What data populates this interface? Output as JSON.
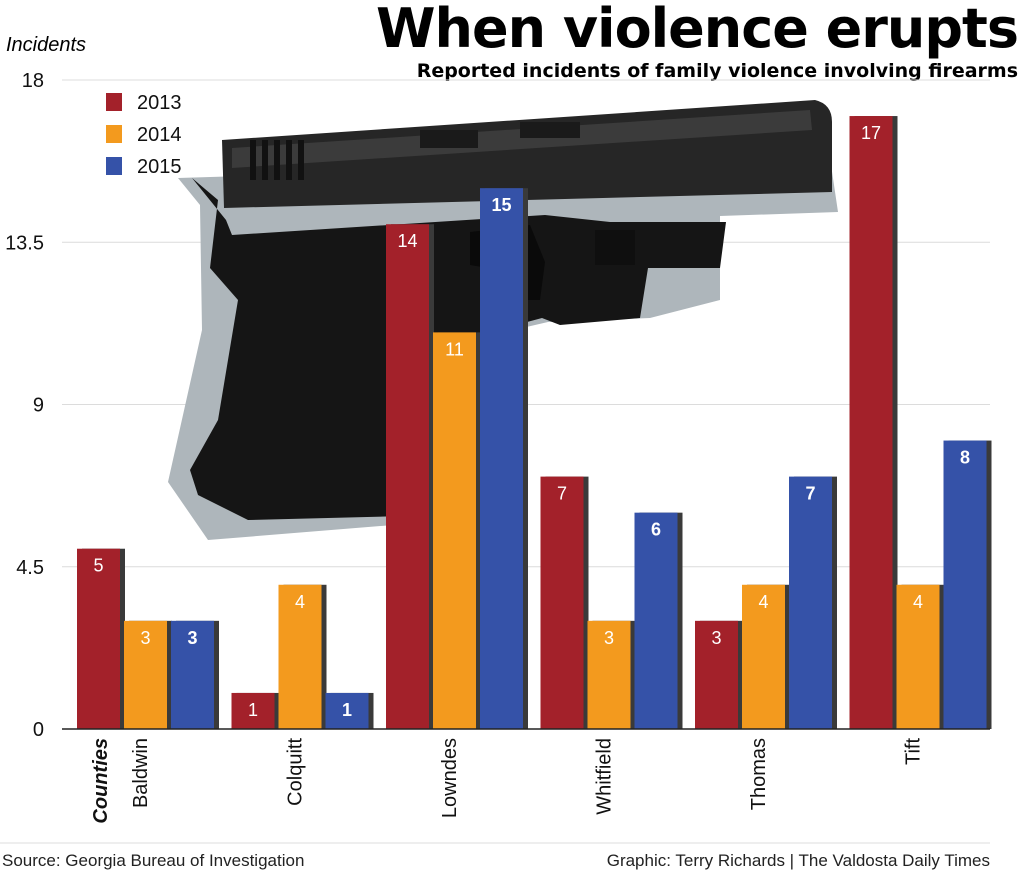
{
  "chart_data": {
    "type": "bar",
    "title": "When violence erupts",
    "subtitle": "Reported incidents of family violence involving firearms",
    "ylabel": "Incidents",
    "xlabel": "Counties",
    "categories": [
      "Baldwin",
      "Colquitt",
      "Lowndes",
      "Whitfield",
      "Thomas",
      "Tift"
    ],
    "series": [
      {
        "name": "2013",
        "color": "#a3212a",
        "values": [
          5,
          1,
          14,
          7,
          3,
          17
        ]
      },
      {
        "name": "2014",
        "color": "#f39a1e",
        "values": [
          3,
          4,
          11,
          3,
          4,
          4
        ]
      },
      {
        "name": "2015",
        "color": "#3552a8",
        "values": [
          3,
          1,
          15,
          6,
          7,
          8
        ]
      }
    ],
    "yticks": [
      "0",
      "4.5",
      "9",
      "13.5",
      "18"
    ],
    "ylim": [
      0,
      18
    ],
    "grid": true,
    "legend_position": "top-left"
  },
  "footer": {
    "source": "Source: Georgia Bureau of Investigation",
    "credit": "Graphic: Terry Richards | The Valdosta Daily Times"
  }
}
